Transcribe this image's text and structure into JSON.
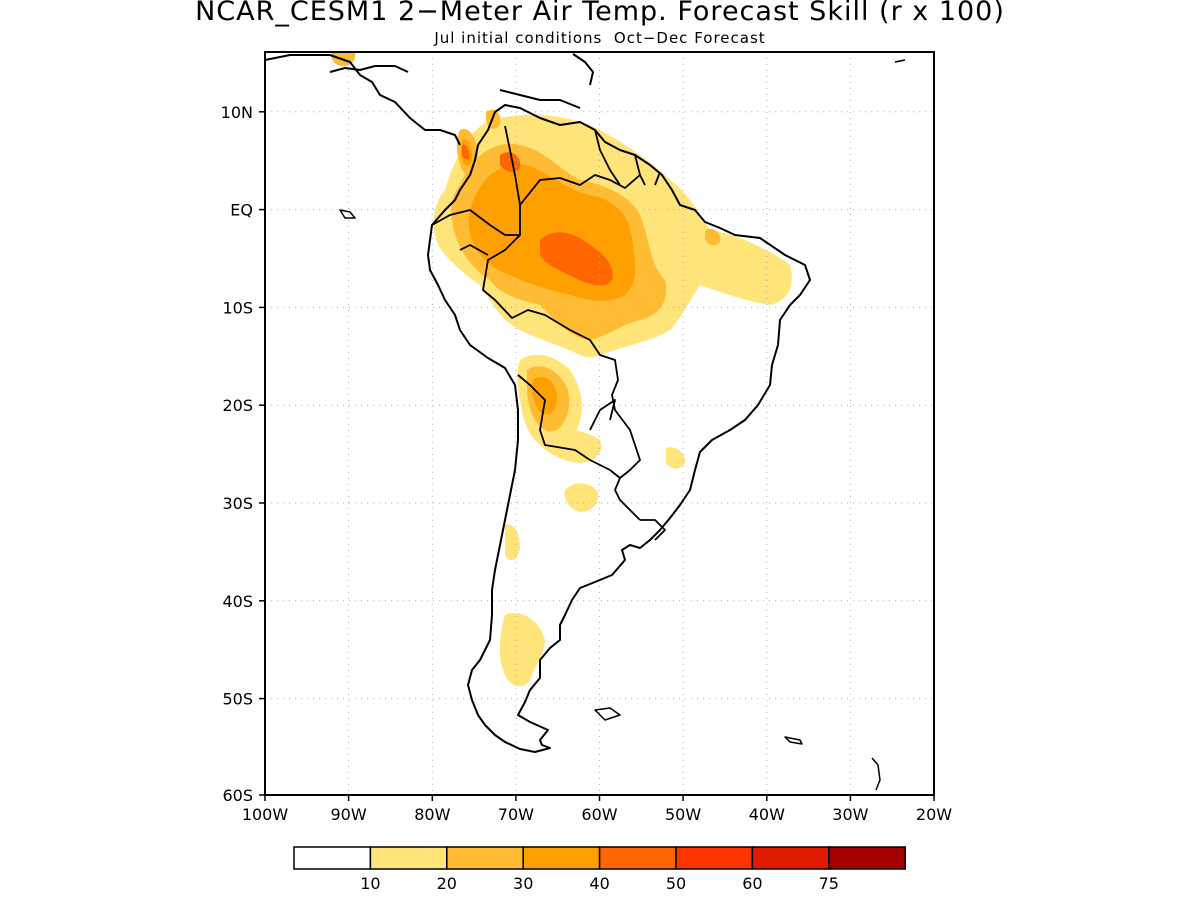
{
  "title": "NCAR_CESM1 2−Meter Air Temp. Forecast Skill (r x 100)",
  "subtitle": "Jul initial conditions  Oct−Dec Forecast",
  "map": {
    "lon_range": [
      -100,
      -20
    ],
    "lat_range": [
      -60,
      15
    ],
    "lon_ticks": [
      "100W",
      "90W",
      "80W",
      "70W",
      "60W",
      "50W",
      "40W",
      "30W",
      "20W"
    ],
    "lat_ticks": [
      "10N",
      "EQ",
      "10S",
      "20S",
      "30S",
      "40S",
      "50S",
      "60S"
    ],
    "grid": "dotted"
  },
  "colorbar": {
    "colors": [
      "#ffffff",
      "#ffe47a",
      "#ffbb33",
      "#ff9f00",
      "#ff6600",
      "#ff3300",
      "#e01b00",
      "#a50000"
    ],
    "labels": [
      "10",
      "20",
      "30",
      "40",
      "50",
      "60",
      "75"
    ]
  }
}
